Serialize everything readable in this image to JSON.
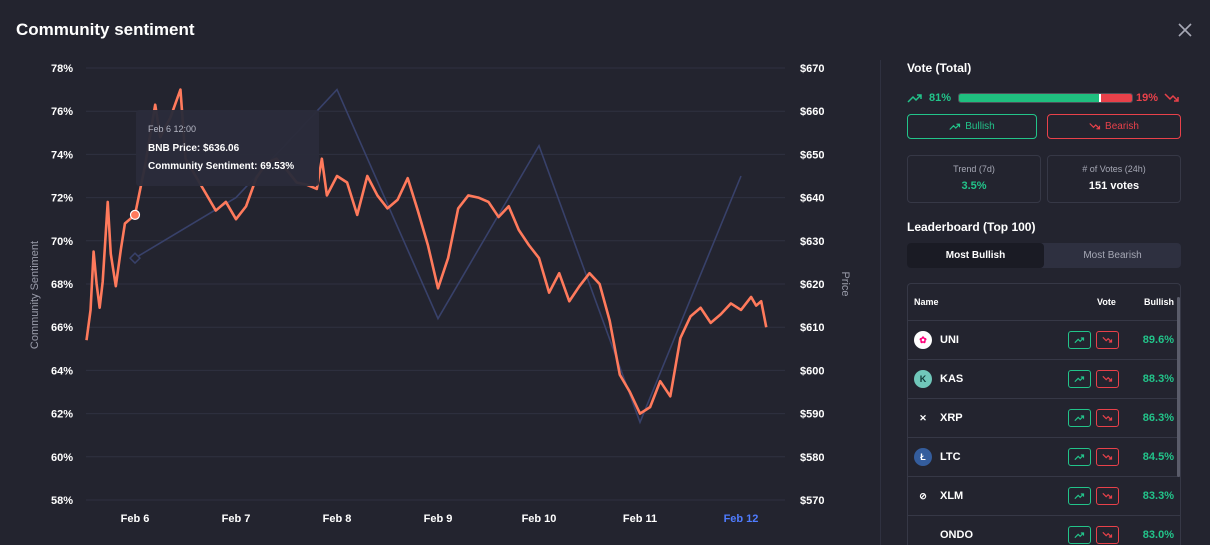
{
  "header": {
    "title": "Community sentiment"
  },
  "chart_data": {
    "type": "line",
    "left_axis": {
      "label": "Community Sentiment",
      "ticks": [
        "78%",
        "76%",
        "74%",
        "72%",
        "70%",
        "68%",
        "66%",
        "64%",
        "62%",
        "60%",
        "58%"
      ],
      "ylim": [
        58,
        78
      ]
    },
    "right_axis": {
      "label": "Price",
      "ticks": [
        "$670",
        "$660",
        "$650",
        "$640",
        "$630",
        "$620",
        "$610",
        "$600",
        "$590",
        "$580",
        "$570"
      ],
      "ylim": [
        570,
        670
      ]
    },
    "x_ticks": [
      "Feb 6",
      "Feb 7",
      "Feb 8",
      "Feb 9",
      "Feb 10",
      "Feb 11",
      "Feb 12"
    ],
    "x_tick_colors": [
      "#ffffff",
      "#ffffff",
      "#ffffff",
      "#ffffff",
      "#ffffff",
      "#ffffff",
      "#4f7cff"
    ],
    "sentiment_color": "#ff7a5c",
    "price_color": "#38416a",
    "price_points": [
      [
        0.0,
        626
      ],
      [
        1.0,
        640
      ],
      [
        2.0,
        665
      ],
      [
        3.0,
        612
      ],
      [
        4.0,
        652
      ],
      [
        5.0,
        588
      ],
      [
        6.0,
        645
      ]
    ],
    "sentiment_points": [
      [
        -0.48,
        65.4
      ],
      [
        -0.44,
        66.8
      ],
      [
        -0.41,
        69.5
      ],
      [
        -0.38,
        68.0
      ],
      [
        -0.35,
        66.9
      ],
      [
        -0.32,
        68.1
      ],
      [
        -0.27,
        71.8
      ],
      [
        -0.24,
        69.4
      ],
      [
        -0.19,
        67.9
      ],
      [
        -0.14,
        69.6
      ],
      [
        -0.1,
        70.8
      ],
      [
        0.0,
        71.2
      ],
      [
        0.1,
        73.5
      ],
      [
        0.2,
        76.3
      ],
      [
        0.25,
        74.8
      ],
      [
        0.35,
        75.7
      ],
      [
        0.45,
        77.0
      ],
      [
        0.5,
        73.8
      ],
      [
        0.6,
        73.0
      ],
      [
        0.7,
        72.2
      ],
      [
        0.8,
        71.4
      ],
      [
        0.9,
        71.8
      ],
      [
        1.0,
        71.0
      ],
      [
        1.1,
        71.6
      ],
      [
        1.2,
        72.9
      ],
      [
        1.3,
        73.6
      ],
      [
        1.4,
        73.8
      ],
      [
        1.5,
        73.3
      ],
      [
        1.6,
        72.7
      ],
      [
        1.7,
        72.6
      ],
      [
        1.8,
        72.4
      ],
      [
        1.85,
        73.8
      ],
      [
        1.9,
        72.1
      ],
      [
        2.0,
        73.0
      ],
      [
        2.1,
        72.7
      ],
      [
        2.2,
        71.2
      ],
      [
        2.3,
        73.0
      ],
      [
        2.4,
        72.1
      ],
      [
        2.5,
        71.5
      ],
      [
        2.6,
        71.9
      ],
      [
        2.7,
        72.9
      ],
      [
        2.8,
        71.4
      ],
      [
        2.9,
        69.8
      ],
      [
        3.0,
        67.8
      ],
      [
        3.1,
        69.2
      ],
      [
        3.2,
        71.5
      ],
      [
        3.3,
        72.1
      ],
      [
        3.4,
        72.0
      ],
      [
        3.5,
        71.8
      ],
      [
        3.6,
        71.1
      ],
      [
        3.7,
        71.6
      ],
      [
        3.8,
        70.5
      ],
      [
        3.9,
        69.8
      ],
      [
        4.0,
        69.2
      ],
      [
        4.1,
        67.6
      ],
      [
        4.2,
        68.5
      ],
      [
        4.3,
        67.2
      ],
      [
        4.4,
        67.9
      ],
      [
        4.5,
        68.5
      ],
      [
        4.6,
        68.0
      ],
      [
        4.7,
        66.3
      ],
      [
        4.8,
        63.8
      ],
      [
        4.9,
        63.0
      ],
      [
        5.0,
        62.0
      ],
      [
        5.1,
        62.3
      ],
      [
        5.2,
        63.5
      ],
      [
        5.3,
        62.8
      ],
      [
        5.4,
        65.5
      ],
      [
        5.5,
        66.5
      ],
      [
        5.6,
        66.9
      ],
      [
        5.7,
        66.2
      ],
      [
        5.8,
        66.6
      ],
      [
        5.9,
        67.1
      ],
      [
        6.0,
        66.8
      ],
      [
        6.1,
        67.4
      ],
      [
        6.15,
        67.0
      ],
      [
        6.2,
        67.2
      ],
      [
        6.25,
        66.0
      ]
    ],
    "highlight": {
      "x": 0.0,
      "y": 71.2,
      "price": 626
    },
    "tooltip": {
      "time": "Feb 6 12:00",
      "price_line": "BNB Price: $636.06",
      "sentiment_line": "Community Sentiment: 69.53%"
    }
  },
  "vote": {
    "title": "Vote (Total)",
    "bullish_pct": "81%",
    "bearish_pct": "19%",
    "bullish_fraction": 0.81,
    "bullish_label": "Bullish",
    "bearish_label": "Bearish"
  },
  "stats": {
    "trend_label": "Trend (7d)",
    "trend_value": "3.5%",
    "votes_label": "# of Votes (24h)",
    "votes_value": "151 votes"
  },
  "leaderboard": {
    "title": "Leaderboard (Top 100)",
    "tabs": [
      "Most Bullish",
      "Most Bearish"
    ],
    "headers": {
      "name": "Name",
      "vote": "Vote",
      "bullish": "Bullish"
    },
    "rows": [
      {
        "symbol": "UNI",
        "pct": "89.6%",
        "icon": "uni-icon",
        "icon_color": "#ff007a",
        "icon_bg": "#ffffff",
        "glyph": "✿"
      },
      {
        "symbol": "KAS",
        "pct": "88.3%",
        "icon": "kas-icon",
        "icon_color": "#0f3a38",
        "icon_bg": "#70c7ba",
        "glyph": "K"
      },
      {
        "symbol": "XRP",
        "pct": "86.3%",
        "icon": "xrp-icon",
        "icon_color": "#ffffff",
        "icon_bg": "transparent",
        "glyph": "✕"
      },
      {
        "symbol": "LTC",
        "pct": "84.5%",
        "icon": "ltc-icon",
        "icon_color": "#ffffff",
        "icon_bg": "#345d9d",
        "glyph": "Ł"
      },
      {
        "symbol": "XLM",
        "pct": "83.3%",
        "icon": "xlm-icon",
        "icon_color": "#ffffff",
        "icon_bg": "transparent",
        "glyph": "⊘"
      },
      {
        "symbol": "ONDO",
        "pct": "83.0%",
        "icon": "ondo-icon",
        "icon_color": "#ffffff",
        "icon_bg": "transparent",
        "glyph": ""
      }
    ]
  }
}
